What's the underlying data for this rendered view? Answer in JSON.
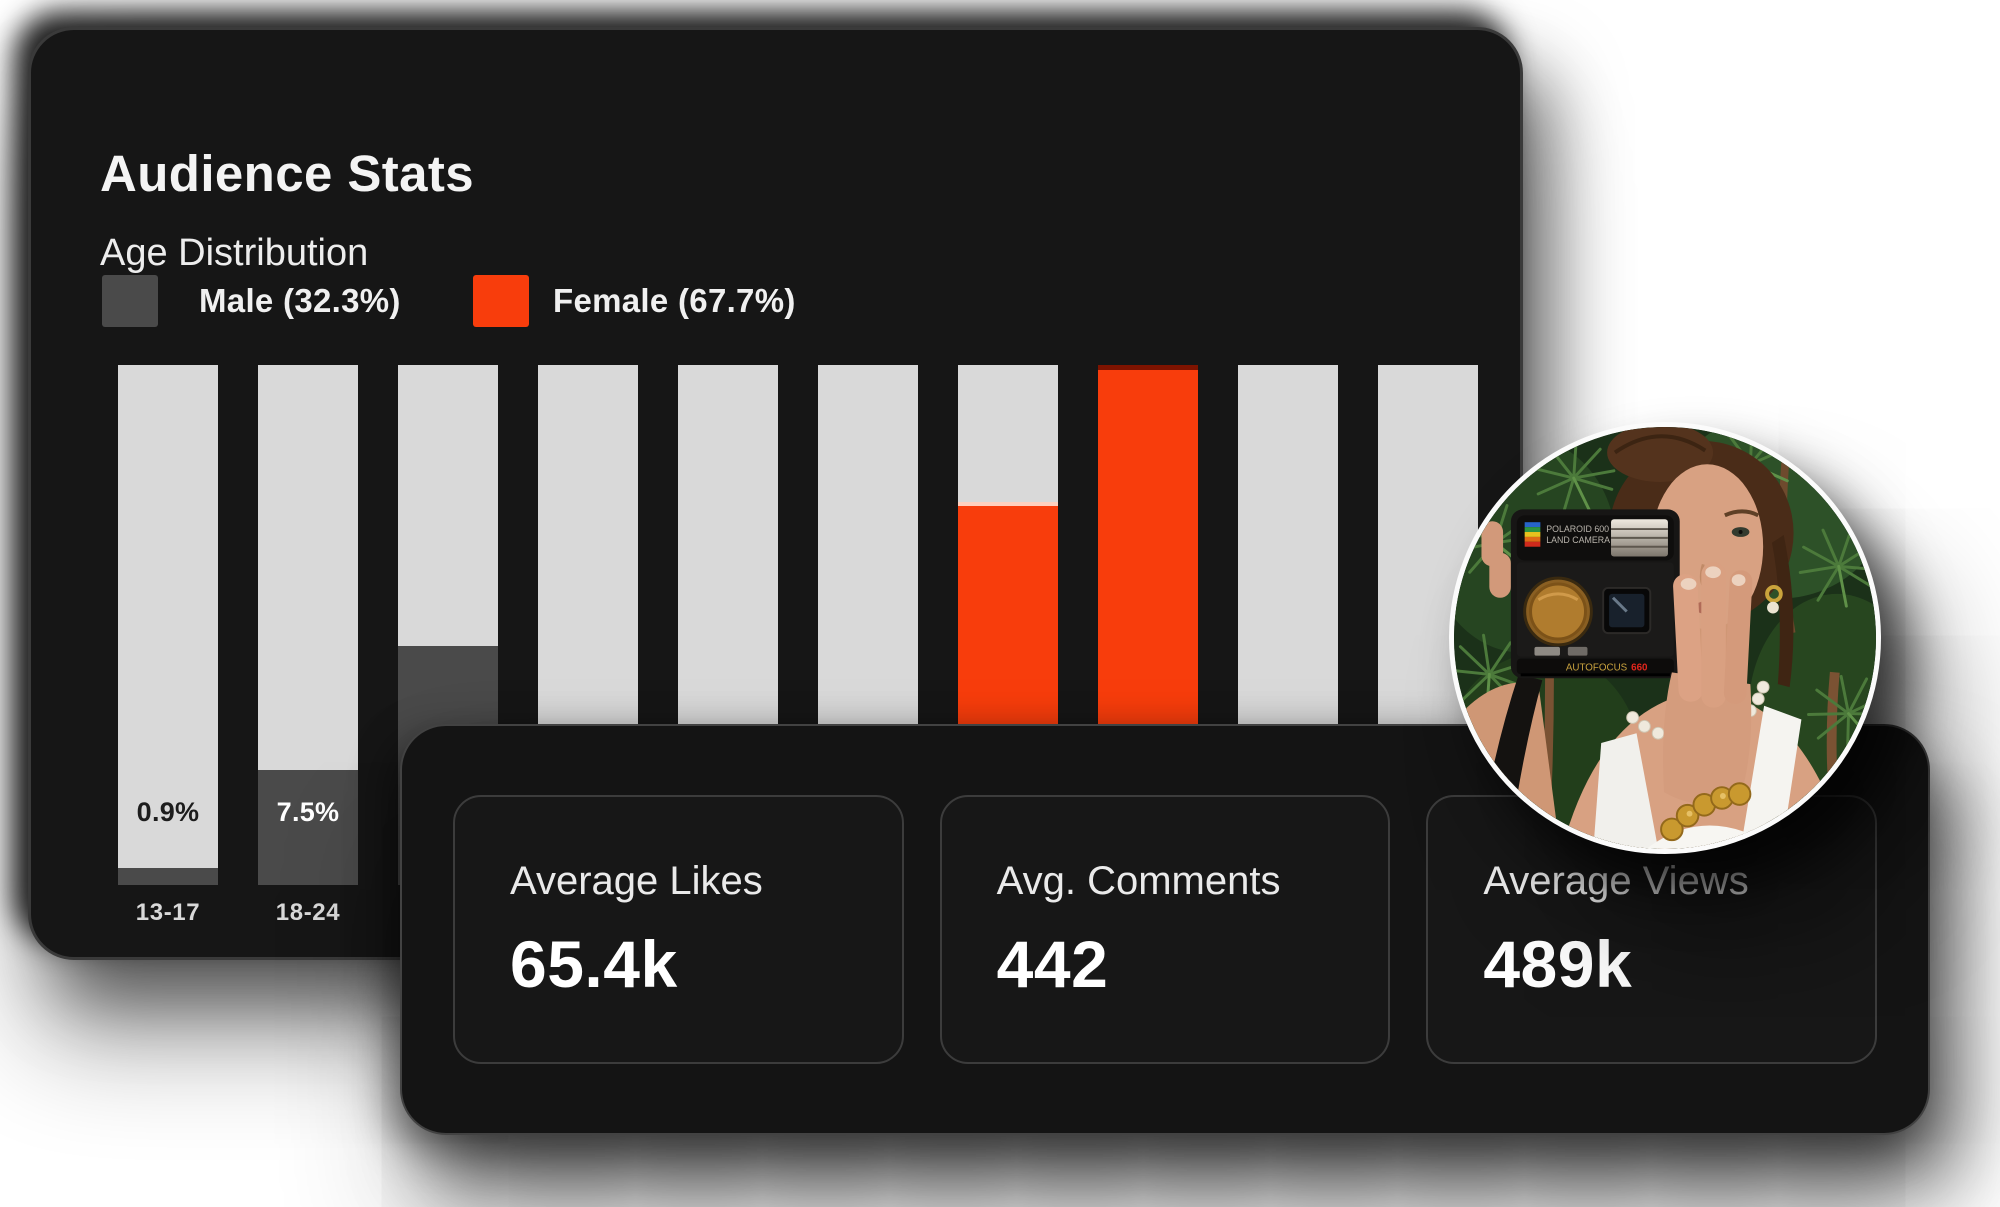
{
  "header": {
    "title": "Audience Stats",
    "subtitle": "Age Distribution"
  },
  "legend": {
    "male_label": "Male (32.3%)",
    "female_label": "Female (67.7%)"
  },
  "colors": {
    "light": "#d9d9d9",
    "male": "#4a4a4a",
    "female": "#f83d0c",
    "female_dark": "#7e1300",
    "divider": "#ffd0bf",
    "card_bg": "#161616",
    "panel_bg": "#141414",
    "border": "#3a3a3a",
    "page_bg": "#ffffff"
  },
  "chart_data": {
    "type": "bar",
    "subtype": "stacked-percent-columns",
    "title": "Age Distribution",
    "grid": "off",
    "legend_position": "top",
    "legend": [
      {
        "name": "Male",
        "share_pct": 32.3,
        "color": "#4a4a4a"
      },
      {
        "name": "Female",
        "share_pct": 67.7,
        "color": "#f83d0c"
      }
    ],
    "bars": [
      {
        "age": "13-17",
        "annotation": "0.9%",
        "annotation_style": "dark",
        "segments": [
          [
            "light",
            96.7
          ],
          [
            "male",
            3.3
          ]
        ]
      },
      {
        "age": "18-24",
        "annotation": "7.5%",
        "annotation_style": "light",
        "segments": [
          [
            "light",
            77.8
          ],
          [
            "male",
            22.2
          ]
        ]
      },
      {
        "age": "",
        "segments": [
          [
            "light",
            54.0
          ],
          [
            "male",
            46.0
          ]
        ]
      },
      {
        "age": "",
        "segments": [
          [
            "light",
            100
          ]
        ]
      },
      {
        "age": "",
        "segments": [
          [
            "light",
            100
          ]
        ]
      },
      {
        "age": "",
        "segments": [
          [
            "light",
            100
          ]
        ]
      },
      {
        "age": "",
        "segments": [
          [
            "light",
            26.3
          ],
          [
            "divider",
            0.8
          ],
          [
            "female",
            72.9
          ]
        ]
      },
      {
        "age": "",
        "segments": [
          [
            "female_dark",
            0.9
          ],
          [
            "female",
            99.1
          ]
        ]
      },
      {
        "age": "",
        "segments": [
          [
            "light",
            100
          ]
        ]
      },
      {
        "age": "",
        "segments": [
          [
            "light",
            100
          ]
        ]
      }
    ]
  },
  "stats": {
    "cards": [
      {
        "label": "Average Likes",
        "value": "65.4k"
      },
      {
        "label": "Avg. Comments",
        "value": "442"
      },
      {
        "label": "Average Views",
        "value": "489k"
      }
    ]
  },
  "avatar": {
    "description": "woman with hair bun holding a black Polaroid instant camera over one eye, pine foliage background",
    "camera": {
      "brand_line1": "POLAROID 600",
      "brand_line2": "LAND CAMERA",
      "label_autofocus": "AUTOFOCUS",
      "label_model": "660"
    }
  }
}
